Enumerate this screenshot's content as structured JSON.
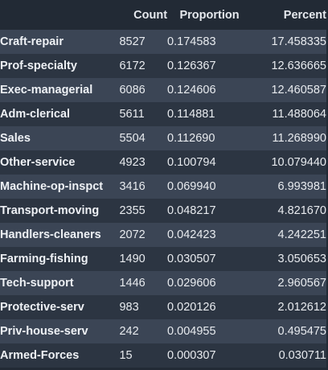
{
  "table": {
    "columns": [
      "Count",
      "Proportion",
      "Percent"
    ],
    "rows": [
      {
        "label": "Craft-repair",
        "count": "8527",
        "proportion": "0.174583",
        "percent": "17.458335"
      },
      {
        "label": "Prof-specialty",
        "count": "6172",
        "proportion": "0.126367",
        "percent": "12.636665"
      },
      {
        "label": "Exec-managerial",
        "count": "6086",
        "proportion": "0.124606",
        "percent": "12.460587"
      },
      {
        "label": "Adm-clerical",
        "count": "5611",
        "proportion": "0.114881",
        "percent": "11.488064"
      },
      {
        "label": "Sales",
        "count": "5504",
        "proportion": "0.112690",
        "percent": "11.268990"
      },
      {
        "label": "Other-service",
        "count": "4923",
        "proportion": "0.100794",
        "percent": "10.079440"
      },
      {
        "label": "Machine-op-inspct",
        "count": "3416",
        "proportion": "0.069940",
        "percent": "6.993981"
      },
      {
        "label": "Transport-moving",
        "count": "2355",
        "proportion": "0.048217",
        "percent": "4.821670"
      },
      {
        "label": "Handlers-cleaners",
        "count": "2072",
        "proportion": "0.042423",
        "percent": "4.242251"
      },
      {
        "label": "Farming-fishing",
        "count": "1490",
        "proportion": "0.030507",
        "percent": "3.050653"
      },
      {
        "label": "Tech-support",
        "count": "1446",
        "proportion": "0.029606",
        "percent": "2.960567"
      },
      {
        "label": "Protective-serv",
        "count": "983",
        "proportion": "0.020126",
        "percent": "2.012612"
      },
      {
        "label": "Priv-house-serv",
        "count": "242",
        "proportion": "0.004955",
        "percent": "0.495475"
      },
      {
        "label": "Armed-Forces",
        "count": "15",
        "proportion": "0.000307",
        "percent": "0.030711"
      }
    ]
  }
}
